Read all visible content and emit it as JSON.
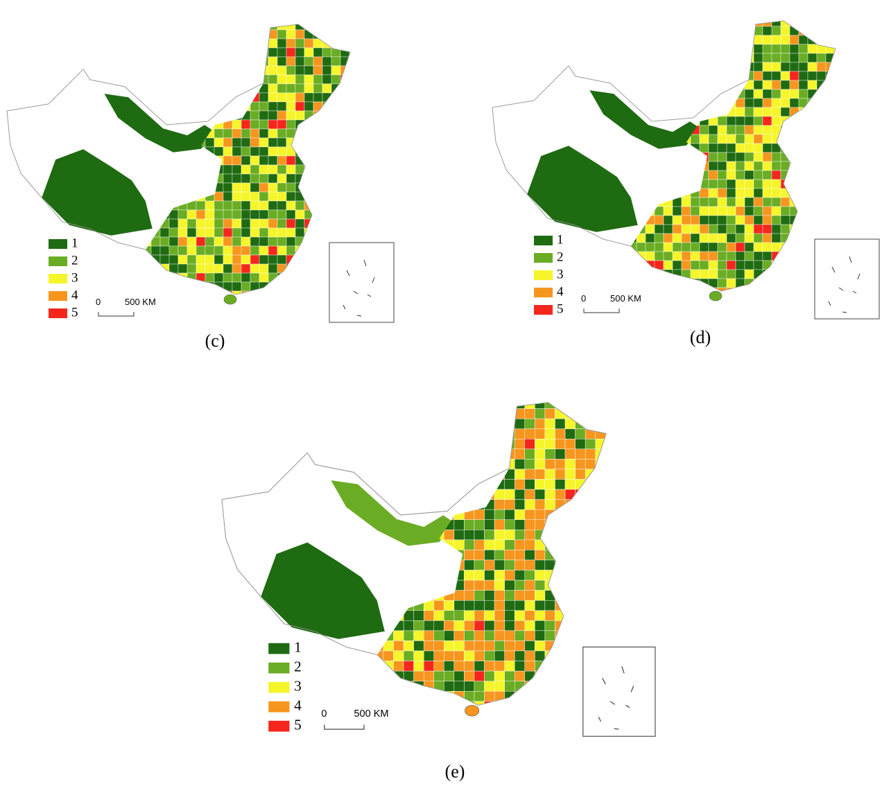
{
  "panels": [
    {
      "label": "(c)"
    },
    {
      "label": "(d)"
    },
    {
      "label": "(e)"
    }
  ],
  "legend": [
    {
      "label": "1",
      "color": "#1f6b12"
    },
    {
      "label": "2",
      "color": "#6aad24"
    },
    {
      "label": "3",
      "color": "#f5f52a"
    },
    {
      "label": "4",
      "color": "#f7961e"
    },
    {
      "label": "5",
      "color": "#f5261c"
    }
  ],
  "scale_bar": {
    "start": "0",
    "end": "500 KM"
  }
}
